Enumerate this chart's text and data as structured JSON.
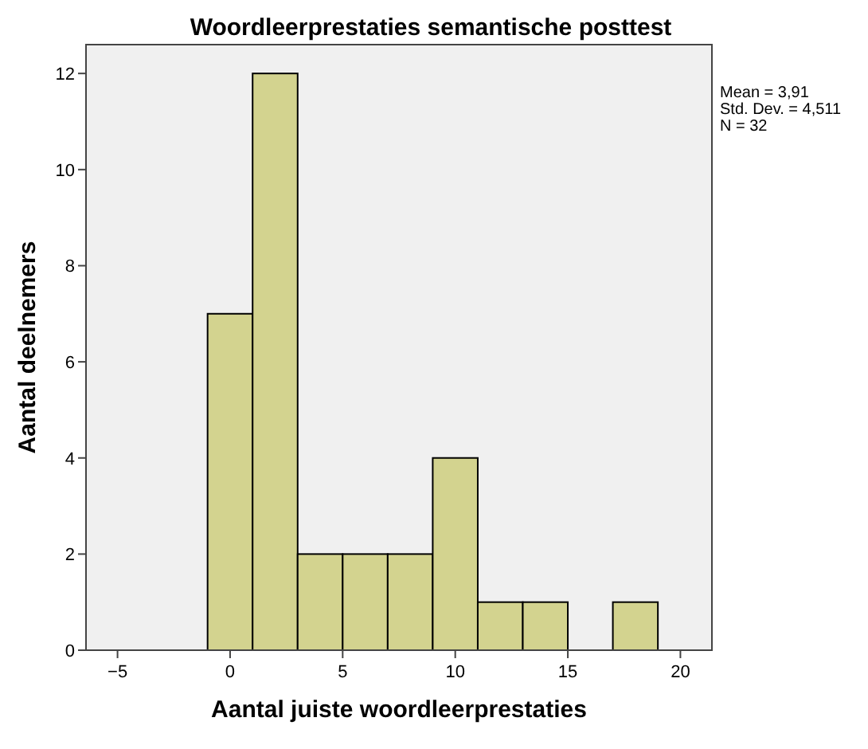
{
  "chart_data": {
    "type": "histogram",
    "title": "Woordleerprestaties semantische posttest",
    "xlabel": "Aantal juiste woordleerprestaties",
    "ylabel": "Aantal deelnemers",
    "bins": [
      -1,
      1,
      3,
      5,
      7,
      9,
      11,
      13,
      15,
      17,
      19
    ],
    "values": [
      7,
      12,
      2,
      2,
      2,
      4,
      1,
      1,
      0,
      1
    ],
    "color": "#d3d38f",
    "xlim": [
      -6.4,
      21.4
    ],
    "xticks": [
      {
        "value": -5,
        "label": "−5"
      },
      0,
      5,
      10,
      15,
      20
    ],
    "ylim": [
      0,
      12.6
    ],
    "yticks": [
      0,
      2,
      4,
      6,
      8,
      10,
      12
    ],
    "grid": false,
    "annotations": [
      "Mean = 3,91",
      "Std. Dev. = 4,511",
      "N = 32"
    ]
  }
}
